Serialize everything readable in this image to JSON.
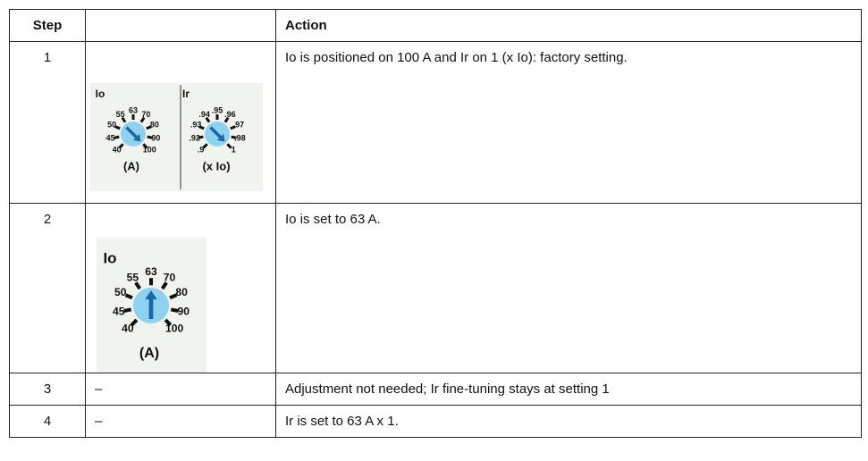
{
  "table": {
    "header": {
      "step": "Step",
      "action": "Action"
    },
    "rows": [
      {
        "step": "1",
        "dials": [
          {
            "title": "Io",
            "unit": "(A)",
            "scale": [
              "40",
              "45",
              "50",
              "55",
              "63",
              "70",
              "80",
              "90",
              "100"
            ]
          },
          {
            "title": "Ir",
            "unit": "(x Io)",
            "scale": [
              ".9",
              ".92",
              ".93",
              ".94",
              ".95",
              ".96",
              ".97",
              ".98",
              "1"
            ]
          }
        ],
        "action": "Io is positioned on 100 A and Ir on 1 (x Io): factory setting."
      },
      {
        "step": "2",
        "dials": [
          {
            "title": "Io",
            "unit": "(A)",
            "scale": [
              "40",
              "45",
              "50",
              "55",
              "63",
              "70",
              "80",
              "90",
              "100"
            ]
          }
        ],
        "action": "Io is set to 63 A."
      },
      {
        "step": "3",
        "image": "–",
        "action": "Adjustment not needed; Ir fine-tuning stays at setting 1"
      },
      {
        "step": "4",
        "image": "–",
        "action": "Ir is set to 63 A x 1."
      }
    ]
  }
}
